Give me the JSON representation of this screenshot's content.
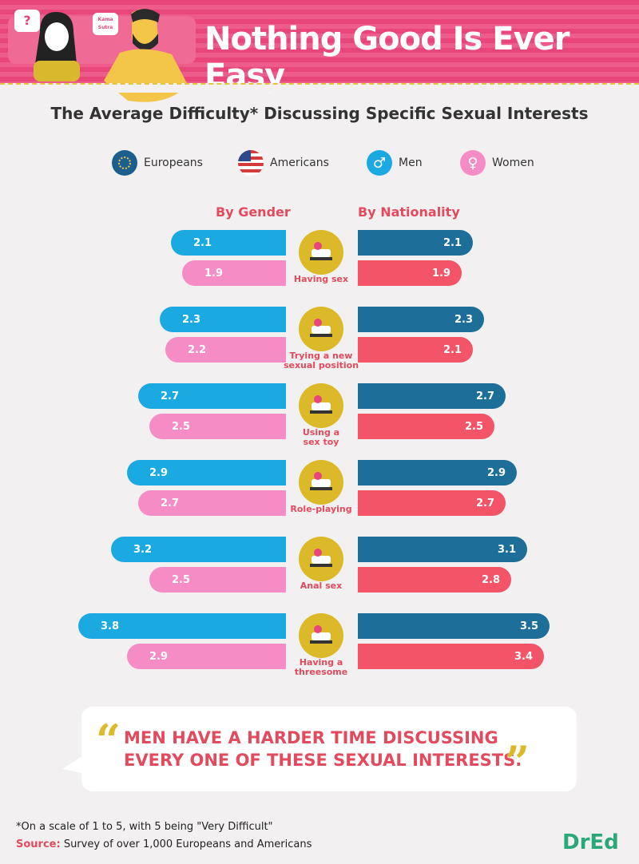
{
  "header": {
    "title": "Nothing Good Is Ever Easy",
    "bubble_left": "?",
    "bubble_right": "Kama Sutra"
  },
  "subtitle": "The Average Difficulty* Discussing Specific Sexual Interests",
  "legend": [
    {
      "label": "Europeans",
      "icon": "eu-flag-icon",
      "color": "#1d5f8c"
    },
    {
      "label": "Americans",
      "icon": "us-flag-icon",
      "color": "#d43a3a"
    },
    {
      "label": "Men",
      "icon": "male-symbol-icon",
      "color": "#1ba9e1"
    },
    {
      "label": "Women",
      "icon": "female-symbol-icon",
      "color": "#f58cc6"
    }
  ],
  "colors": {
    "men": "#1ba9e1",
    "women": "#f58cc6",
    "europeans": "#1d6e99",
    "americans": "#f35467"
  },
  "chart_data": {
    "type": "bar",
    "column_headers": [
      "By Gender",
      "By Nationality"
    ],
    "categories": [
      "Having sex",
      "Trying a new sexual position",
      "Using a sex toy",
      "Role-playing",
      "Anal sex",
      "Having a threesome"
    ],
    "category_labels": [
      [
        "Having sex"
      ],
      [
        "Trying a new",
        "sexual position"
      ],
      [
        "Using a",
        "sex toy"
      ],
      [
        "Role-playing"
      ],
      [
        "Anal sex"
      ],
      [
        "Having a",
        "threesome"
      ]
    ],
    "series": [
      {
        "name": "Men",
        "group": "By Gender",
        "values": [
          2.1,
          2.3,
          2.7,
          2.9,
          3.2,
          3.8
        ]
      },
      {
        "name": "Women",
        "group": "By Gender",
        "values": [
          1.9,
          2.2,
          2.5,
          2.7,
          2.5,
          2.9
        ]
      },
      {
        "name": "Europeans",
        "group": "By Nationality",
        "values": [
          2.1,
          2.3,
          2.7,
          2.9,
          3.1,
          3.5
        ]
      },
      {
        "name": "Americans",
        "group": "By Nationality",
        "values": [
          1.9,
          2.1,
          2.5,
          2.7,
          2.8,
          3.4
        ]
      }
    ],
    "value_labels": {
      "Men": [
        "2.1",
        "2.3",
        "2.7",
        "2.9",
        "3.2",
        "3.8"
      ],
      "Women": [
        "1.9",
        "2.2",
        "2.5",
        "2.7",
        "2.5",
        "2.9"
      ],
      "Europeans": [
        "2.1",
        "2.3",
        "2.7",
        "2.9",
        "3.1",
        "3.5"
      ],
      "Americans": [
        "1.9",
        "2.1",
        "2.5",
        "2.7",
        "2.8",
        "3.4"
      ]
    },
    "icons": [
      "bed-icon",
      "kama-sutra-book-icon",
      "vibrator-icon",
      "maid-costume-icon",
      "anal-beads-icon",
      "threesome-bed-icon"
    ]
  },
  "quote": {
    "open": "“",
    "line1": "MEN HAVE A HARDER TIME DISCUSSING",
    "line2": "EVERY ONE OF THESE SEXUAL INTERESTS.",
    "close": "”"
  },
  "footer": {
    "note": "*On a scale of 1 to 5, with 5 being \"Very Difficult\"",
    "source_label": "Source:",
    "source_text": " Survey of over 1,000 Europeans and Americans",
    "logo": "DrEd"
  }
}
